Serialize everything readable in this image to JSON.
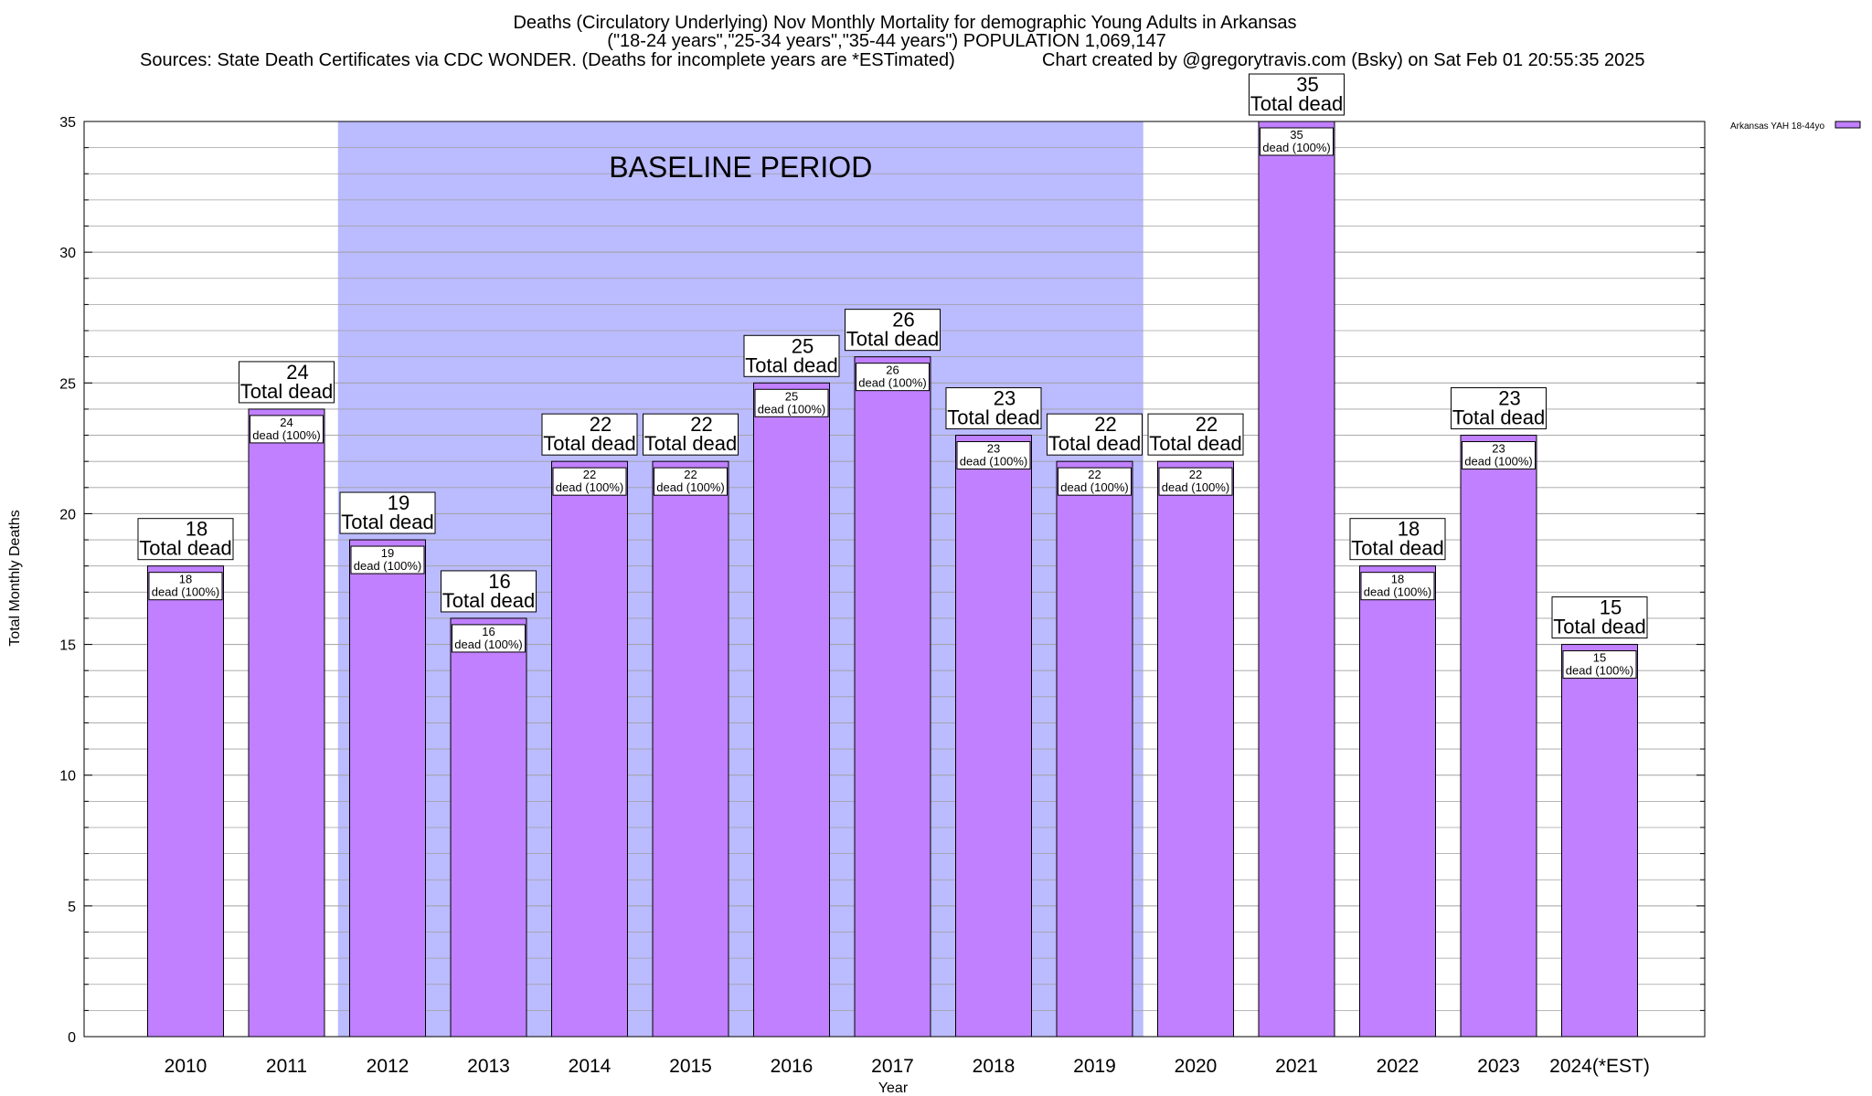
{
  "title_lines": [
    "Deaths (Circulatory Underlying) Nov Monthly Mortality for demographic Young Adults in Arkansas",
    "(\"18-24 years\",\"25-34 years\",\"35-44 years\") POPULATION 1,069,147"
  ],
  "sources_text": "Sources: State Death Certificates via CDC WONDER. (Deaths for incomplete years are *ESTimated)",
  "credit_text": "Chart created by @gregorytravis.com (Bsky) on Sat Feb 01 20:55:35 2025",
  "baseline_label": "BASELINE PERIOD",
  "total_label": "Total dead",
  "inner_label_suffix": "dead (100%)",
  "colors": {
    "bar_fill": "#c080ff",
    "bar_stroke": "#000000",
    "baseline_band": "#bbbbff",
    "grid": "#a0a0a0"
  },
  "chart_data": {
    "type": "bar",
    "categories": [
      "2010",
      "2011",
      "2012",
      "2013",
      "2014",
      "2015",
      "2016",
      "2017",
      "2018",
      "2019",
      "2020",
      "2021",
      "2022",
      "2023",
      "2024(*EST)"
    ],
    "series": [
      {
        "name": "Arkansas YAH 18-44yo",
        "values": [
          18,
          24,
          19,
          16,
          22,
          22,
          25,
          26,
          23,
          22,
          22,
          35,
          18,
          23,
          15
        ]
      }
    ],
    "xlabel": "Year",
    "ylabel": "Total Monthly Deaths",
    "ylim": [
      0,
      35
    ],
    "yticks": [
      0,
      5,
      10,
      15,
      20,
      25,
      30,
      35
    ],
    "minor_grid_step": 1,
    "baseline_period": [
      "2012",
      "2019"
    ],
    "legend_position": "top-right",
    "grid": true
  }
}
